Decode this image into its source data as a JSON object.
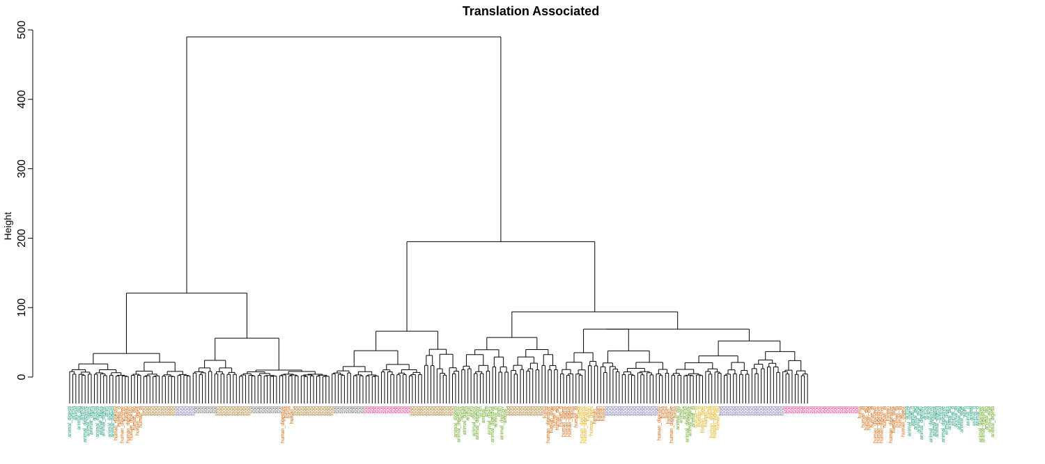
{
  "chart_data": {
    "type": "dendrogram",
    "title": "Translation Associated",
    "ylabel": "Height",
    "ylim": [
      0,
      500
    ],
    "yticks": [
      "0",
      "100",
      "200",
      "300",
      "400",
      "500"
    ],
    "leaf_count": 300,
    "root_height": 490,
    "main_merges": [
      {
        "height": 490,
        "note": "root join"
      },
      {
        "height": 121,
        "note": "left major cluster"
      },
      {
        "height": 195,
        "note": "right major cluster"
      },
      {
        "height": 57,
        "note": "left-right subcluster"
      },
      {
        "height": 67,
        "note": "middle subcluster"
      },
      {
        "height": 94,
        "note": "right subcluster"
      },
      {
        "height": 69,
        "note": "far-right subcluster"
      },
      {
        "height": 57,
        "note": "right-middle subcluster"
      }
    ],
    "leaf_group_colors": [
      "#1b9e77",
      "#d95f02",
      "#7570b3",
      "#e7298a",
      "#66a61e",
      "#e6ab02",
      "#a6761d",
      "#666666"
    ],
    "visible_leaf_labels": [
      "animal_digestive",
      "human_digestive",
      "food",
      "soil"
    ]
  }
}
